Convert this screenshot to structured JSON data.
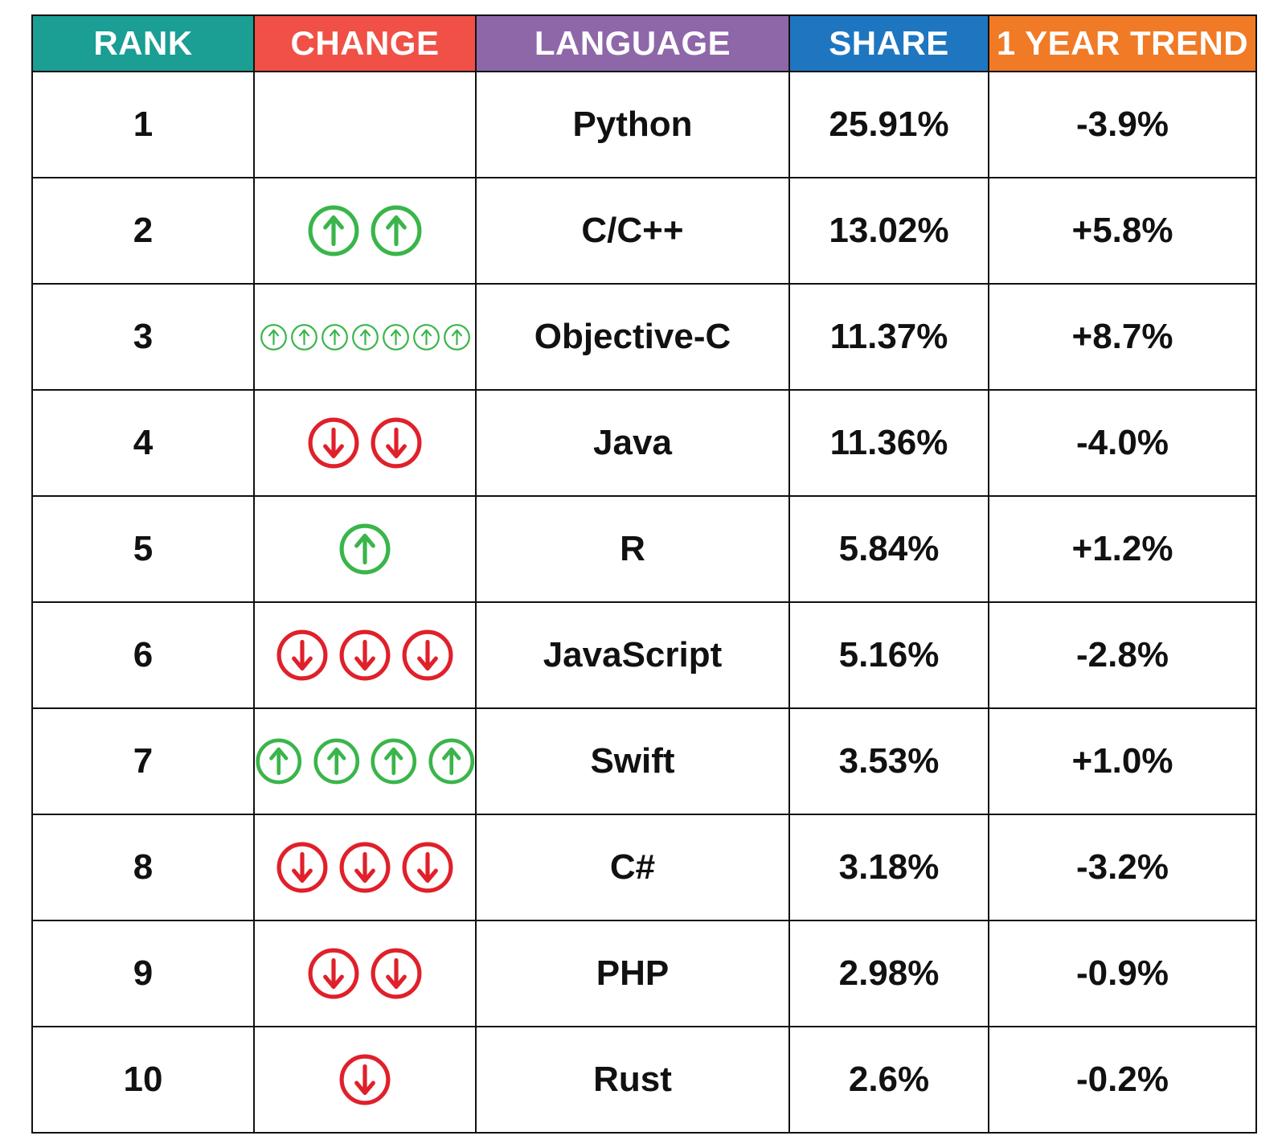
{
  "chart_data": {
    "type": "table",
    "columns": [
      {
        "label": "RANK",
        "color": "#1b9e94"
      },
      {
        "label": "CHANGE",
        "color": "#f05046"
      },
      {
        "label": "LANGUAGE",
        "color": "#8e67a8"
      },
      {
        "label": "SHARE",
        "color": "#1f76c0"
      },
      {
        "label": "1 YEAR TREND",
        "color": "#f07a25"
      }
    ],
    "change_icon_colors": {
      "up": "#3ab54a",
      "down": "#e0202a"
    },
    "rows": [
      {
        "rank": "1",
        "change": {
          "direction": "none",
          "count": 0
        },
        "language": "Python",
        "share": "25.91%",
        "trend": "-3.9%"
      },
      {
        "rank": "2",
        "change": {
          "direction": "up",
          "count": 2
        },
        "language": "C/C++",
        "share": "13.02%",
        "trend": "+5.8%"
      },
      {
        "rank": "3",
        "change": {
          "direction": "up",
          "count": 7
        },
        "language": "Objective-C",
        "share": "11.37%",
        "trend": "+8.7%"
      },
      {
        "rank": "4",
        "change": {
          "direction": "down",
          "count": 2
        },
        "language": "Java",
        "share": "11.36%",
        "trend": "-4.0%"
      },
      {
        "rank": "5",
        "change": {
          "direction": "up",
          "count": 1
        },
        "language": "R",
        "share": "5.84%",
        "trend": "+1.2%"
      },
      {
        "rank": "6",
        "change": {
          "direction": "down",
          "count": 3
        },
        "language": "JavaScript",
        "share": "5.16%",
        "trend": "-2.8%"
      },
      {
        "rank": "7",
        "change": {
          "direction": "up",
          "count": 4
        },
        "language": "Swift",
        "share": "3.53%",
        "trend": "+1.0%"
      },
      {
        "rank": "8",
        "change": {
          "direction": "down",
          "count": 3
        },
        "language": "C#",
        "share": "3.18%",
        "trend": "-3.2%"
      },
      {
        "rank": "9",
        "change": {
          "direction": "down",
          "count": 2
        },
        "language": "PHP",
        "share": "2.98%",
        "trend": "-0.9%"
      },
      {
        "rank": "10",
        "change": {
          "direction": "down",
          "count": 1
        },
        "language": "Rust",
        "share": "2.6%",
        "trend": "-0.2%"
      }
    ]
  }
}
